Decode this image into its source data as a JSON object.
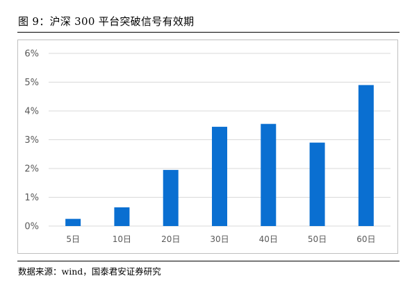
{
  "header": {
    "title": "图 9：沪深 300 平台突破信号有效期"
  },
  "footer": {
    "source": "数据来源：wind，国泰君安证券研究"
  },
  "colors": {
    "bar": "#0A6FD1",
    "grid": "#D9D9D9",
    "tick_text": "#595959"
  },
  "chart_data": {
    "type": "bar",
    "categories": [
      "5日",
      "10日",
      "20日",
      "30日",
      "40日",
      "50日",
      "60日"
    ],
    "values": [
      0.25,
      0.65,
      1.95,
      3.45,
      3.55,
      2.9,
      4.9
    ],
    "ylim": [
      0,
      6
    ],
    "yticks": [
      "0%",
      "1%",
      "2%",
      "3%",
      "4%",
      "5%",
      "6%"
    ],
    "grid": true,
    "legend": "none",
    "xlabel": "",
    "ylabel": ""
  }
}
